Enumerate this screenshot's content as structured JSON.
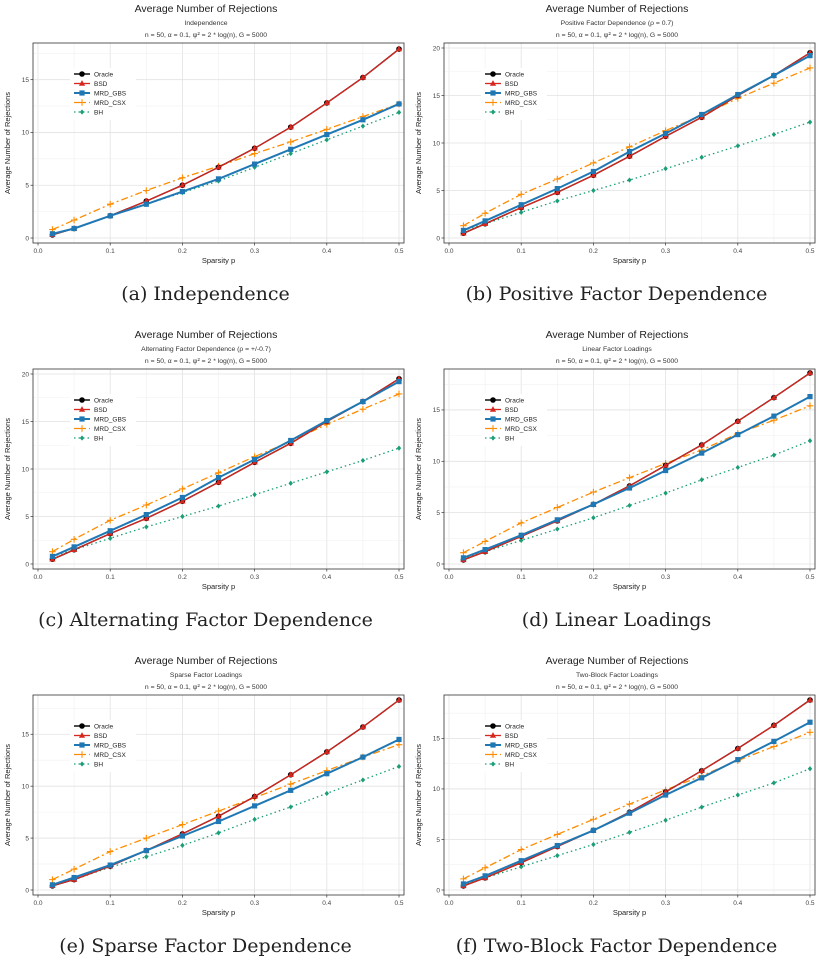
{
  "common": {
    "title": "Average Number of Rejections",
    "params": "n = 50, α = 0.1, ψ² = 2 * log(n), G = 5000",
    "xlabel": "Sparsity p",
    "ylabel": "Average Number of Rejections",
    "x_ticks": [
      0.0,
      0.1,
      0.2,
      0.3,
      0.4,
      0.5
    ],
    "x_tick_labels": [
      "0.0",
      "0.1",
      "0.2",
      "0.3",
      "0.4",
      "0.5"
    ],
    "legend_labels": [
      "Oracle",
      "BSD",
      "MRD_GBS",
      "MRD_CSX",
      "BH"
    ],
    "colors": {
      "Oracle": "#000000",
      "BSD": "#d7261e",
      "MRD_GBS": "#1f78b4",
      "MRD_CSX": "#ff8c00",
      "BH": "#1a9e77"
    }
  },
  "panels": [
    {
      "caption": "(a) Independence",
      "subtitle": "Independence"
    },
    {
      "caption": "(b) Positive Factor Dependence",
      "subtitle": "Positive Factor Dependence (ρ = 0.7)"
    },
    {
      "caption": "(c) Alternating Factor Dependence",
      "subtitle": "Alternating Factor Dependence (ρ = +/-0.7)"
    },
    {
      "caption": "(d) Linear Loadings",
      "subtitle": "Linear Factor Loadings"
    },
    {
      "caption": "(e) Sparse Factor Dependence",
      "subtitle": "Sparse Factor Loadings"
    },
    {
      "caption": "(f) Two-Block Factor Dependence",
      "subtitle": "Two-Block Factor Loadings"
    }
  ],
  "chart_data": [
    {
      "type": "line",
      "title": "Average Number of Rejections",
      "subtitle": "Independence",
      "xlabel": "Sparsity p",
      "ylabel": "Average Number of Rejections",
      "xlim": [
        0,
        0.5
      ],
      "ylim": [
        0,
        18
      ],
      "y_ticks": [
        0,
        5,
        10,
        15
      ],
      "legend_position": "top-left",
      "x": [
        0.02,
        0.05,
        0.1,
        0.15,
        0.2,
        0.25,
        0.3,
        0.35,
        0.4,
        0.45,
        0.5
      ],
      "series": [
        {
          "name": "Oracle",
          "values": [
            0.3,
            0.9,
            2.1,
            3.5,
            5.0,
            6.7,
            8.5,
            10.5,
            12.8,
            15.2,
            17.9
          ]
        },
        {
          "name": "BSD",
          "values": [
            0.3,
            0.9,
            2.1,
            3.5,
            5.0,
            6.7,
            8.5,
            10.5,
            12.8,
            15.2,
            17.9
          ]
        },
        {
          "name": "MRD_GBS",
          "values": [
            0.4,
            0.9,
            2.1,
            3.2,
            4.4,
            5.6,
            7.0,
            8.4,
            9.8,
            11.2,
            12.7
          ]
        },
        {
          "name": "MRD_CSX",
          "values": [
            0.8,
            1.7,
            3.2,
            4.5,
            5.7,
            6.8,
            8.0,
            9.1,
            10.3,
            11.5,
            12.7
          ]
        },
        {
          "name": "BH",
          "values": [
            0.4,
            0.9,
            2.1,
            3.2,
            4.3,
            5.4,
            6.7,
            8.0,
            9.3,
            10.6,
            11.9
          ]
        }
      ]
    },
    {
      "type": "line",
      "title": "Average Number of Rejections",
      "subtitle": "Positive Factor Dependence (ρ = 0.7)",
      "xlabel": "Sparsity p",
      "ylabel": "Average Number of Rejections",
      "xlim": [
        0,
        0.5
      ],
      "ylim": [
        0,
        20
      ],
      "y_ticks": [
        0,
        5,
        10,
        15,
        20
      ],
      "legend_position": "top-left",
      "x": [
        0.02,
        0.05,
        0.1,
        0.15,
        0.2,
        0.25,
        0.3,
        0.35,
        0.4,
        0.45,
        0.5
      ],
      "series": [
        {
          "name": "Oracle",
          "values": [
            0.5,
            1.5,
            3.2,
            4.8,
            6.6,
            8.6,
            10.7,
            12.7,
            15.0,
            17.1,
            19.5
          ]
        },
        {
          "name": "BSD",
          "values": [
            0.5,
            1.5,
            3.2,
            4.8,
            6.6,
            8.6,
            10.7,
            12.7,
            15.0,
            17.1,
            19.5
          ]
        },
        {
          "name": "MRD_GBS",
          "values": [
            0.8,
            1.8,
            3.5,
            5.2,
            7.0,
            9.1,
            11.0,
            13.0,
            15.1,
            17.1,
            19.2
          ]
        },
        {
          "name": "MRD_CSX",
          "values": [
            1.3,
            2.6,
            4.6,
            6.2,
            7.9,
            9.6,
            11.3,
            12.9,
            14.7,
            16.3,
            17.9
          ]
        },
        {
          "name": "BH",
          "values": [
            0.8,
            1.5,
            2.7,
            3.9,
            5.0,
            6.1,
            7.3,
            8.5,
            9.7,
            10.9,
            12.2
          ]
        }
      ]
    },
    {
      "type": "line",
      "title": "Average Number of Rejections",
      "subtitle": "Alternating Factor Dependence (ρ = +/-0.7)",
      "xlabel": "Sparsity p",
      "ylabel": "Average Number of Rejections",
      "xlim": [
        0,
        0.5
      ],
      "ylim": [
        0,
        20
      ],
      "y_ticks": [
        0,
        5,
        10,
        15,
        20
      ],
      "legend_position": "top-left",
      "x": [
        0.02,
        0.05,
        0.1,
        0.15,
        0.2,
        0.25,
        0.3,
        0.35,
        0.4,
        0.45,
        0.5
      ],
      "series": [
        {
          "name": "Oracle",
          "values": [
            0.5,
            1.5,
            3.2,
            4.8,
            6.6,
            8.6,
            10.7,
            12.7,
            15.0,
            17.1,
            19.5
          ]
        },
        {
          "name": "BSD",
          "values": [
            0.5,
            1.5,
            3.2,
            4.8,
            6.6,
            8.6,
            10.7,
            12.7,
            15.0,
            17.1,
            19.5
          ]
        },
        {
          "name": "MRD_GBS",
          "values": [
            0.8,
            1.8,
            3.5,
            5.2,
            7.0,
            9.1,
            11.0,
            13.0,
            15.1,
            17.1,
            19.2
          ]
        },
        {
          "name": "MRD_CSX",
          "values": [
            1.3,
            2.6,
            4.6,
            6.2,
            7.9,
            9.6,
            11.3,
            12.9,
            14.7,
            16.3,
            17.9
          ]
        },
        {
          "name": "BH",
          "values": [
            0.8,
            1.5,
            2.7,
            3.9,
            5.0,
            6.1,
            7.3,
            8.5,
            9.7,
            10.9,
            12.2
          ]
        }
      ]
    },
    {
      "type": "line",
      "title": "Average Number of Rejections",
      "subtitle": "Linear Factor Loadings",
      "xlabel": "Sparsity p",
      "ylabel": "Average Number of Rejections",
      "xlim": [
        0,
        0.5
      ],
      "ylim": [
        0,
        18.5
      ],
      "y_ticks": [
        0,
        5,
        10,
        15
      ],
      "legend_position": "top-left",
      "x": [
        0.02,
        0.05,
        0.1,
        0.15,
        0.2,
        0.25,
        0.3,
        0.35,
        0.4,
        0.45,
        0.5
      ],
      "series": [
        {
          "name": "Oracle",
          "values": [
            0.4,
            1.2,
            2.7,
            4.2,
            5.8,
            7.6,
            9.6,
            11.6,
            13.9,
            16.2,
            18.6
          ]
        },
        {
          "name": "BSD",
          "values": [
            0.4,
            1.2,
            2.7,
            4.2,
            5.8,
            7.6,
            9.6,
            11.6,
            13.9,
            16.2,
            18.6
          ]
        },
        {
          "name": "MRD_GBS",
          "values": [
            0.6,
            1.4,
            2.8,
            4.3,
            5.8,
            7.4,
            9.1,
            10.8,
            12.6,
            14.4,
            16.3
          ]
        },
        {
          "name": "MRD_CSX",
          "values": [
            1.1,
            2.2,
            4.0,
            5.5,
            7.0,
            8.4,
            9.8,
            11.1,
            12.7,
            14.0,
            15.4
          ]
        },
        {
          "name": "BH",
          "values": [
            0.5,
            1.2,
            2.3,
            3.4,
            4.5,
            5.7,
            6.9,
            8.2,
            9.4,
            10.6,
            12.0
          ]
        }
      ]
    },
    {
      "type": "line",
      "title": "Average Number of Rejections",
      "subtitle": "Sparse Factor Loadings",
      "xlabel": "Sparsity p",
      "ylabel": "Average Number of Rejections",
      "xlim": [
        0,
        0.5
      ],
      "ylim": [
        0,
        18.3
      ],
      "y_ticks": [
        0,
        5,
        10,
        15
      ],
      "legend_position": "top-left",
      "x": [
        0.02,
        0.05,
        0.1,
        0.15,
        0.2,
        0.25,
        0.3,
        0.35,
        0.4,
        0.45,
        0.5
      ],
      "series": [
        {
          "name": "Oracle",
          "values": [
            0.4,
            1.0,
            2.3,
            3.8,
            5.4,
            7.1,
            9.0,
            11.1,
            13.3,
            15.7,
            18.3
          ]
        },
        {
          "name": "BSD",
          "values": [
            0.4,
            1.0,
            2.3,
            3.8,
            5.4,
            7.1,
            9.0,
            11.1,
            13.3,
            15.7,
            18.3
          ]
        },
        {
          "name": "MRD_GBS",
          "values": [
            0.5,
            1.2,
            2.4,
            3.8,
            5.2,
            6.6,
            8.1,
            9.6,
            11.2,
            12.8,
            14.5
          ]
        },
        {
          "name": "MRD_CSX",
          "values": [
            1.0,
            2.0,
            3.7,
            5.0,
            6.3,
            7.6,
            8.9,
            10.2,
            11.5,
            12.8,
            14.0
          ]
        },
        {
          "name": "BH",
          "values": [
            0.4,
            1.0,
            2.2,
            3.2,
            4.3,
            5.5,
            6.8,
            8.0,
            9.3,
            10.6,
            11.9
          ]
        }
      ]
    },
    {
      "type": "line",
      "title": "Average Number of Rejections",
      "subtitle": "Two-Block Factor Loadings",
      "xlabel": "Sparsity p",
      "ylabel": "Average Number of Rejections",
      "xlim": [
        0,
        0.5
      ],
      "ylim": [
        0,
        18.8
      ],
      "y_ticks": [
        0,
        5,
        10,
        15
      ],
      "legend_position": "top-left",
      "x": [
        0.02,
        0.05,
        0.1,
        0.15,
        0.2,
        0.25,
        0.3,
        0.35,
        0.4,
        0.45,
        0.5
      ],
      "series": [
        {
          "name": "Oracle",
          "values": [
            0.4,
            1.2,
            2.7,
            4.3,
            5.9,
            7.7,
            9.7,
            11.8,
            14.0,
            16.3,
            18.8
          ]
        },
        {
          "name": "BSD",
          "values": [
            0.4,
            1.2,
            2.7,
            4.3,
            5.9,
            7.7,
            9.7,
            11.8,
            14.0,
            16.3,
            18.8
          ]
        },
        {
          "name": "MRD_GBS",
          "values": [
            0.6,
            1.4,
            2.9,
            4.4,
            5.9,
            7.6,
            9.4,
            11.1,
            12.9,
            14.7,
            16.6
          ]
        },
        {
          "name": "MRD_CSX",
          "values": [
            1.1,
            2.2,
            4.0,
            5.5,
            7.0,
            8.5,
            9.9,
            11.3,
            12.8,
            14.2,
            15.6
          ]
        },
        {
          "name": "BH",
          "values": [
            0.5,
            1.2,
            2.3,
            3.4,
            4.5,
            5.7,
            6.9,
            8.2,
            9.4,
            10.6,
            12.0
          ]
        }
      ]
    }
  ]
}
